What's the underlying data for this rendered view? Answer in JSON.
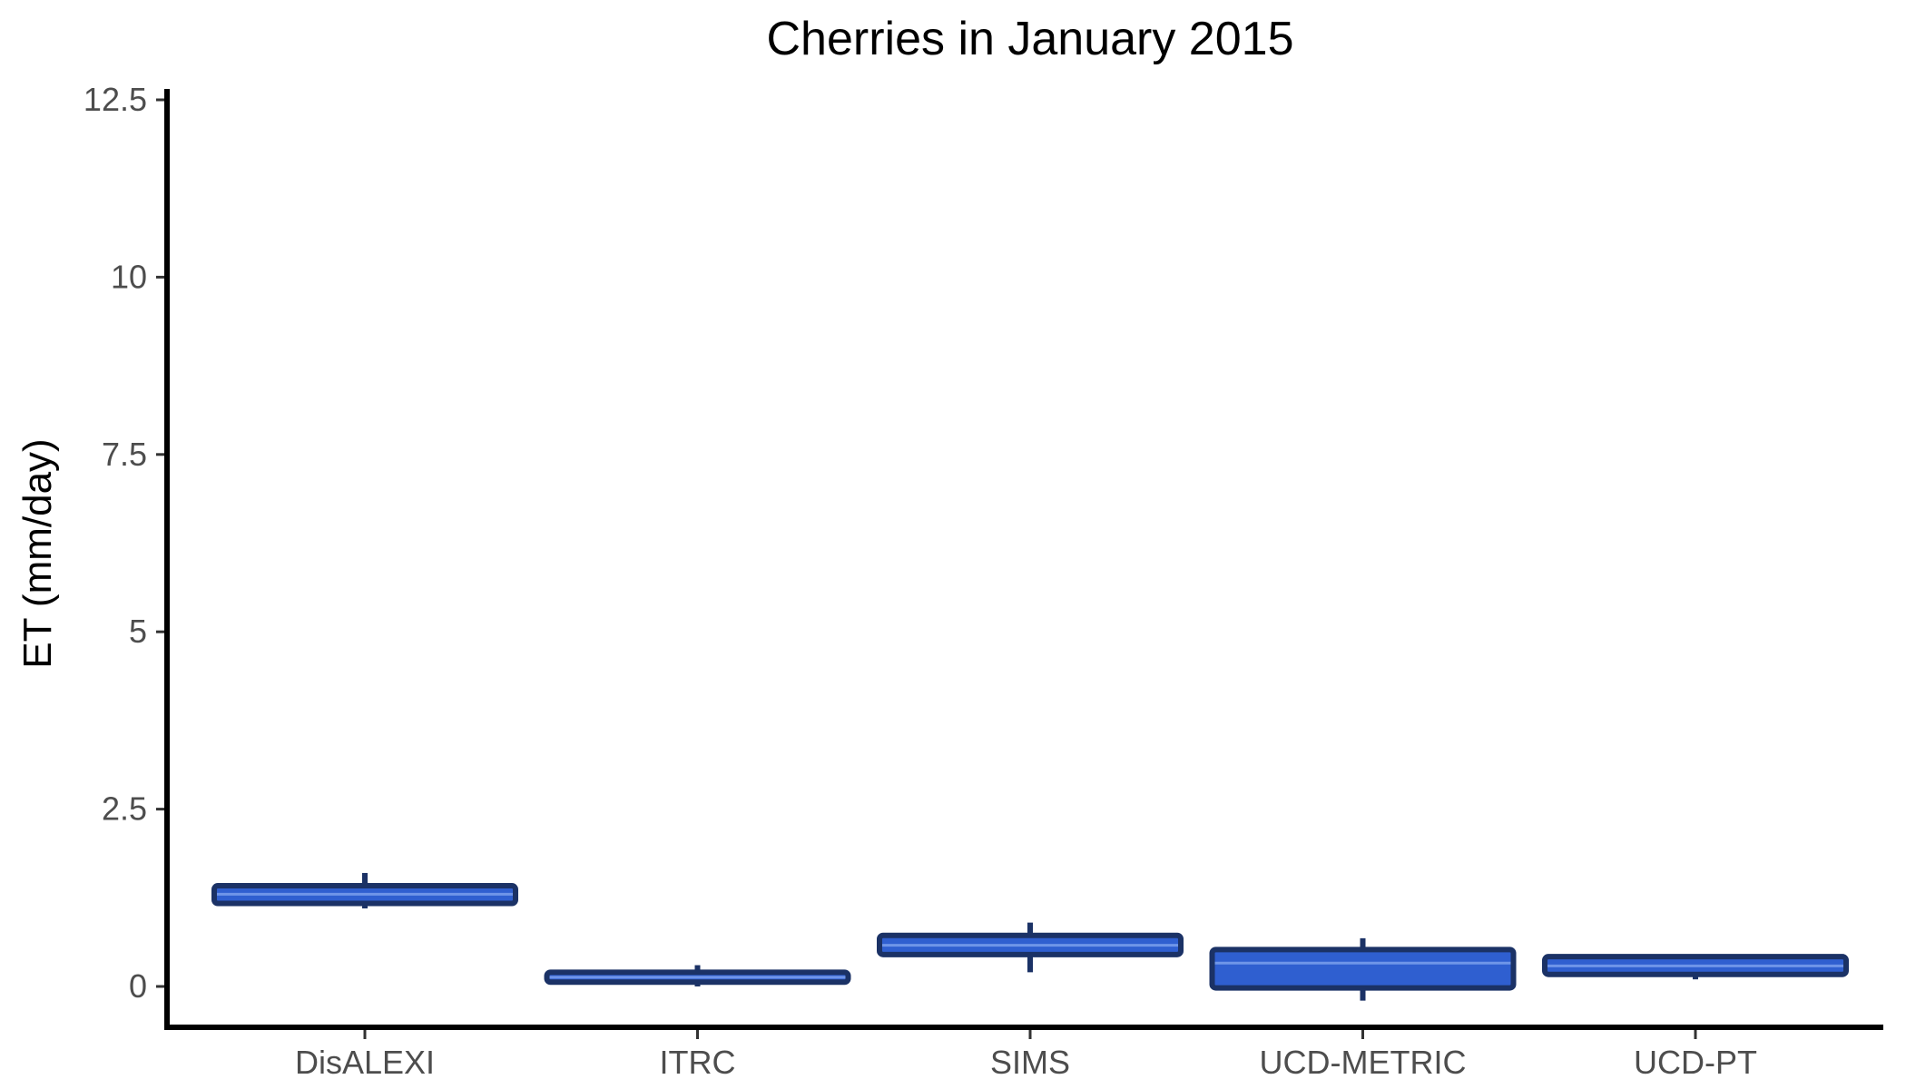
{
  "chart_data": {
    "type": "boxplot",
    "title": "Cherries in January 2015",
    "xlabel": "",
    "ylabel": "ET (mm/day)",
    "ylim": [
      -0.55,
      12.6
    ],
    "yticks": [
      0,
      2.5,
      5,
      7.5,
      10,
      12.5
    ],
    "ytick_labels": [
      "0",
      "2.5",
      "5",
      "7.5",
      "10",
      "12.5"
    ],
    "categories": [
      "DisALEXI",
      "ITRC",
      "SIMS",
      "UCD-METRIC",
      "UCD-PT"
    ],
    "boxes": [
      {
        "category": "DisALEXI",
        "whisker_low": 1.1,
        "q1": 1.17,
        "median": 1.3,
        "q3": 1.42,
        "whisker_high": 1.6
      },
      {
        "category": "ITRC",
        "whisker_low": 0.0,
        "q1": 0.06,
        "median": 0.13,
        "q3": 0.2,
        "whisker_high": 0.3
      },
      {
        "category": "SIMS",
        "whisker_low": 0.2,
        "q1": 0.45,
        "median": 0.58,
        "q3": 0.72,
        "whisker_high": 0.9
      },
      {
        "category": "UCD-METRIC",
        "whisker_low": -0.2,
        "q1": -0.02,
        "median": 0.33,
        "q3": 0.52,
        "whisker_high": 0.68
      },
      {
        "category": "UCD-PT",
        "whisker_low": 0.1,
        "q1": 0.17,
        "median": 0.29,
        "q3": 0.42,
        "whisker_high": 0.42
      }
    ],
    "box_fill": "#2f5fd0",
    "box_stroke": "#1b3266",
    "grid": false
  }
}
